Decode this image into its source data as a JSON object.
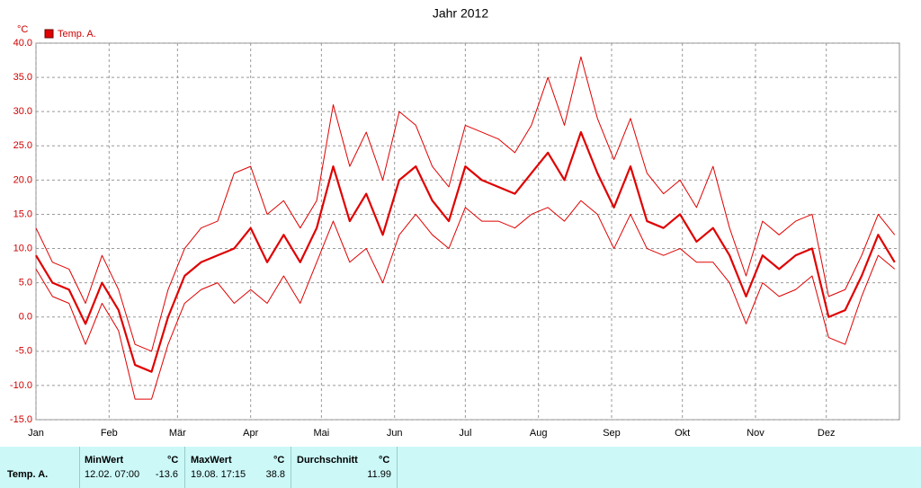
{
  "chart_data": {
    "type": "line",
    "title": "Jahr 2012",
    "y_unit": "°C",
    "x": [
      0,
      7,
      14,
      21,
      28,
      35,
      42,
      49,
      56,
      63,
      70,
      77,
      84,
      91,
      98,
      105,
      112,
      119,
      126,
      133,
      140,
      147,
      154,
      161,
      168,
      175,
      182,
      189,
      196,
      203,
      210,
      217,
      224,
      231,
      238,
      245,
      252,
      259,
      266,
      273,
      280,
      287,
      294,
      301,
      308,
      315,
      322,
      329,
      336,
      343,
      350,
      357,
      364
    ],
    "series": [
      {
        "name": "Temp. A.",
        "color": "#e00000",
        "width": 2.2,
        "values": [
          9,
          5,
          4,
          -1,
          5,
          1,
          -7,
          -8,
          0,
          6,
          8,
          9,
          10,
          13,
          8,
          12,
          8,
          13,
          22,
          14,
          18,
          12,
          20,
          22,
          17,
          14,
          22,
          20,
          19,
          18,
          21,
          24,
          20,
          27,
          21,
          16,
          22,
          14,
          13,
          15,
          11,
          13,
          9,
          3,
          9,
          7,
          9,
          10,
          0,
          1,
          6,
          12,
          8
        ]
      },
      {
        "color": "#e00000",
        "width": 1,
        "values": [
          13,
          8,
          7,
          2,
          9,
          4,
          -4,
          -5,
          4,
          10,
          13,
          14,
          21,
          22,
          15,
          17,
          13,
          17,
          31,
          22,
          27,
          20,
          30,
          28,
          22,
          19,
          28,
          27,
          26,
          24,
          28,
          35,
          28,
          38,
          29,
          23,
          29,
          21,
          18,
          20,
          16,
          22,
          13,
          6,
          14,
          12,
          14,
          15,
          3,
          4,
          9,
          15,
          12
        ]
      },
      {
        "color": "#e00000",
        "width": 1,
        "values": [
          7,
          3,
          2,
          -4,
          2,
          -2,
          -12,
          -12,
          -4,
          2,
          4,
          5,
          2,
          4,
          2,
          6,
          2,
          8,
          14,
          8,
          10,
          5,
          12,
          15,
          12,
          10,
          16,
          14,
          14,
          13,
          15,
          16,
          14,
          17,
          15,
          10,
          15,
          10,
          9,
          10,
          8,
          8,
          5,
          -1,
          5,
          3,
          4,
          6,
          -3,
          -4,
          3,
          9,
          7
        ]
      }
    ],
    "xlim": [
      0,
      366
    ],
    "xticks": [
      {
        "value": 0,
        "label": "Jan"
      },
      {
        "value": 31,
        "label": "Feb"
      },
      {
        "value": 60,
        "label": "Mär"
      },
      {
        "value": 91,
        "label": "Apr"
      },
      {
        "value": 121,
        "label": "Mai"
      },
      {
        "value": 152,
        "label": "Jun"
      },
      {
        "value": 182,
        "label": "Jul"
      },
      {
        "value": 213,
        "label": "Aug"
      },
      {
        "value": 244,
        "label": "Sep"
      },
      {
        "value": 274,
        "label": "Okt"
      },
      {
        "value": 305,
        "label": "Nov"
      },
      {
        "value": 335,
        "label": "Dez"
      }
    ],
    "ylim": [
      -15,
      40
    ],
    "yticks": [
      {
        "value": -15,
        "label": "-15.0"
      },
      {
        "value": -10,
        "label": "-10.0"
      },
      {
        "value": -5,
        "label": "-5.0"
      },
      {
        "value": 0,
        "label": "0.0"
      },
      {
        "value": 5,
        "label": "5.0"
      },
      {
        "value": 10,
        "label": "10.0"
      },
      {
        "value": 15,
        "label": "15.0"
      },
      {
        "value": 20,
        "label": "20.0"
      },
      {
        "value": 25,
        "label": "25.0"
      },
      {
        "value": 30,
        "label": "30.0"
      },
      {
        "value": 35,
        "label": "35.0"
      },
      {
        "value": 40,
        "label": "40.0"
      }
    ],
    "grid": true
  },
  "stats_table": {
    "row_label": "Temp. A.",
    "columns": [
      {
        "header": "MinWert",
        "unit": "°C",
        "time": "12.02.  07:00",
        "value": "-13.6"
      },
      {
        "header": "MaxWert",
        "unit": "°C",
        "time": "19.08.  17:15",
        "value": "38.8"
      },
      {
        "header": "Durchschnitt",
        "unit": "°C",
        "value": "11.99"
      }
    ]
  }
}
